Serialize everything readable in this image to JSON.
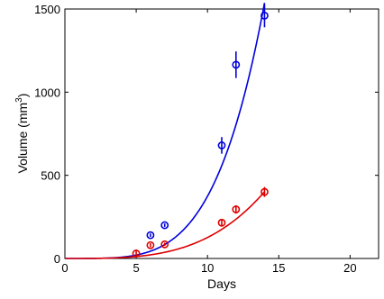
{
  "chart_data": {
    "type": "scatter",
    "xlabel": "Days",
    "ylabel": "Volume (mm",
    "ylabel_sup": "3",
    "ylabel_close": ")",
    "xlim": [
      0,
      22
    ],
    "ylim": [
      0,
      1500
    ],
    "xticks": [
      0,
      5,
      10,
      15,
      20
    ],
    "yticks": [
      0,
      500,
      1000,
      1500
    ],
    "grid": false,
    "legend": "none",
    "series": [
      {
        "color": "#0000dd",
        "points": [
          {
            "x": 6,
            "y": 140,
            "err": 10
          },
          {
            "x": 7,
            "y": 200,
            "err": 10
          },
          {
            "x": 11,
            "y": 680,
            "err": 50
          },
          {
            "x": 12,
            "y": 1165,
            "err": 80
          },
          {
            "x": 14,
            "y": 1460,
            "err": 70
          }
        ],
        "fit": {
          "a": 0.0236,
          "b": 4.2
        }
      },
      {
        "color": "#dd0000",
        "points": [
          {
            "x": 5,
            "y": 30,
            "err": 20
          },
          {
            "x": 6,
            "y": 80,
            "err": 12
          },
          {
            "x": 7,
            "y": 85,
            "err": 10
          },
          {
            "x": 11,
            "y": 215,
            "err": 20
          },
          {
            "x": 12,
            "y": 295,
            "err": 25
          },
          {
            "x": 14,
            "y": 400,
            "err": 30
          }
        ],
        "fit": {
          "a": 0.0458,
          "b": 3.44
        }
      }
    ]
  }
}
